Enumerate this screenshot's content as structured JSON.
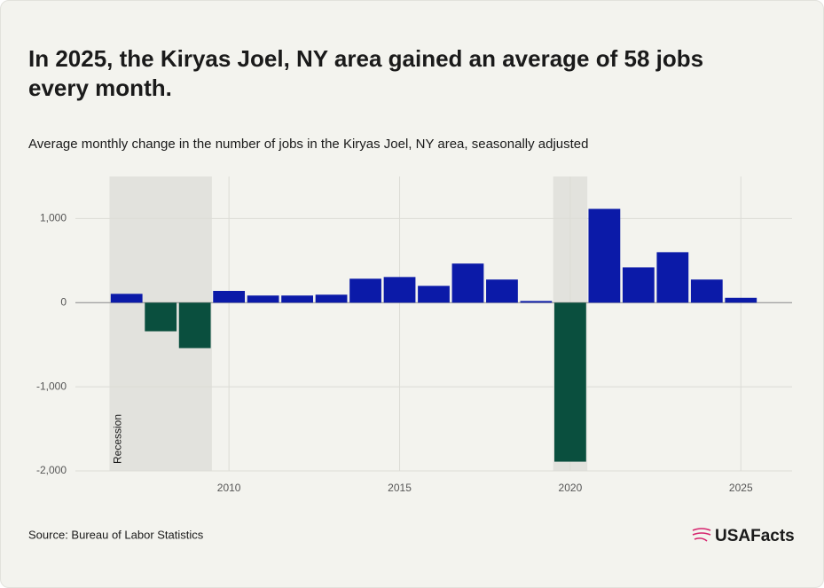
{
  "chart_data": {
    "type": "bar",
    "title": "In 2025, the Kiryas Joel, NY area gained an average of 58 jobs every month.",
    "subtitle": "Average monthly change in the number of jobs in the Kiryas Joel, NY area, seasonally adjusted",
    "source": "Source: Bureau of Labor Statistics",
    "brand": "USAFacts",
    "x": [
      2007,
      2008,
      2009,
      2010,
      2011,
      2012,
      2013,
      2014,
      2015,
      2016,
      2017,
      2018,
      2019,
      2020,
      2021,
      2022,
      2023,
      2024,
      2025
    ],
    "values": [
      105,
      -340,
      -540,
      140,
      85,
      85,
      95,
      285,
      305,
      200,
      465,
      275,
      20,
      -1890,
      1115,
      420,
      600,
      275,
      58
    ],
    "color": "#0b1aa8",
    "negative_color": "#0a4f3e",
    "xlim": [
      2005.5,
      2026.5
    ],
    "xticks": [
      2010,
      2015,
      2020,
      2025
    ],
    "ylim": [
      -2000,
      1500
    ],
    "yticks": [
      {
        "value": -2000,
        "label": "-2,000"
      },
      {
        "value": -1000,
        "label": "-1,000"
      },
      0,
      {
        "value": 1000,
        "label": "1,000"
      }
    ],
    "recession_label": "Recession",
    "recessions": [
      [
        2006.5,
        2009.5
      ],
      [
        2019.5,
        2020.5
      ]
    ],
    "grid": true
  }
}
